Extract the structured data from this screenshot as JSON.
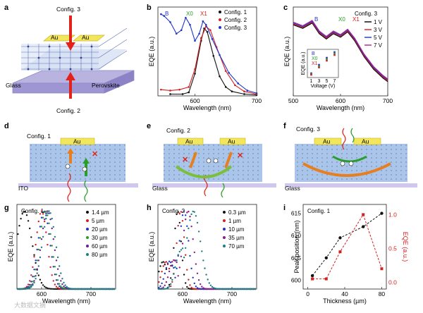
{
  "panel_labels": [
    "a",
    "b",
    "c",
    "d",
    "e",
    "f",
    "g",
    "h",
    "i"
  ],
  "panel_a": {
    "config3": "Config. 3",
    "config2": "Config. 2",
    "au_left": "Au",
    "au_right": "Au",
    "glass": "Glass",
    "perovskite": "Perovskite"
  },
  "panel_d": {
    "config": "Config. 1",
    "au": "Au",
    "substrate": "ITO"
  },
  "panel_e": {
    "config": "Config. 2",
    "au_left": "Au",
    "au_right": "Au",
    "substrate": "Glass"
  },
  "panel_f": {
    "config": "Config. 3",
    "au_left": "Au",
    "au_right": "Au",
    "substrate": "Glass"
  },
  "watermark": "大数据文摘",
  "chart_data": [
    {
      "panel": "b",
      "type": "scatter",
      "xlabel": "Wavelength (nm)",
      "ylabel": "EQE (a.u.)",
      "xlim": [
        540,
        700
      ],
      "xticks": [
        600,
        700
      ],
      "annotations": [
        "B",
        "X0",
        "X1"
      ],
      "series": [
        {
          "name": "Config. 1",
          "color": "#111111",
          "points": [
            [
              560,
              0.02
            ],
            [
              580,
              0.02
            ],
            [
              590,
              0.04
            ],
            [
              600,
              0.25
            ],
            [
              610,
              0.62
            ],
            [
              615,
              0.76
            ],
            [
              620,
              0.72
            ],
            [
              630,
              0.45
            ],
            [
              640,
              0.22
            ],
            [
              650,
              0.1
            ],
            [
              660,
              0.05
            ],
            [
              680,
              0.02
            ],
            [
              700,
              0.01
            ]
          ]
        },
        {
          "name": "Config. 2",
          "color": "#d62020",
          "points": [
            [
              545,
              0.07
            ],
            [
              560,
              0.06
            ],
            [
              575,
              0.07
            ],
            [
              590,
              0.1
            ],
            [
              600,
              0.3
            ],
            [
              610,
              0.65
            ],
            [
              618,
              0.78
            ],
            [
              625,
              0.74
            ],
            [
              635,
              0.55
            ],
            [
              650,
              0.28
            ],
            [
              665,
              0.12
            ],
            [
              680,
              0.05
            ],
            [
              700,
              0.02
            ]
          ]
        },
        {
          "name": "Config. 3",
          "color": "#1f35c8",
          "points": [
            [
              545,
              0.92
            ],
            [
              550,
              0.9
            ],
            [
              560,
              0.83
            ],
            [
              570,
              0.7
            ],
            [
              578,
              0.74
            ],
            [
              585,
              0.88
            ],
            [
              592,
              0.8
            ],
            [
              600,
              0.62
            ],
            [
              607,
              0.7
            ],
            [
              613,
              0.84
            ],
            [
              618,
              0.8
            ],
            [
              628,
              0.64
            ],
            [
              640,
              0.46
            ],
            [
              655,
              0.26
            ],
            [
              670,
              0.14
            ],
            [
              685,
              0.06
            ],
            [
              700,
              0.03
            ]
          ]
        }
      ]
    },
    {
      "panel": "c",
      "type": "line",
      "title": "Config. 3",
      "xlabel": "Wavelength (nm)",
      "ylabel": "EQE (a.u.)",
      "xlim": [
        500,
        700
      ],
      "xticks": [
        500,
        600,
        700
      ],
      "annotations": [
        "B",
        "X0",
        "X1"
      ],
      "series": [
        {
          "name": "1 V",
          "color": "#000000",
          "points": [
            [
              500,
              0.8
            ],
            [
              520,
              0.76
            ],
            [
              540,
              0.82
            ],
            [
              555,
              0.7
            ],
            [
              570,
              0.64
            ],
            [
              585,
              0.7
            ],
            [
              600,
              0.66
            ],
            [
              615,
              0.72
            ],
            [
              630,
              0.62
            ],
            [
              650,
              0.44
            ],
            [
              670,
              0.3
            ],
            [
              690,
              0.2
            ],
            [
              700,
              0.16
            ]
          ]
        },
        {
          "name": "3 V",
          "color": "#d62020",
          "points": [
            [
              500,
              0.81
            ],
            [
              520,
              0.77
            ],
            [
              540,
              0.83
            ],
            [
              555,
              0.71
            ],
            [
              570,
              0.65
            ],
            [
              585,
              0.71
            ],
            [
              600,
              0.67
            ],
            [
              615,
              0.73
            ],
            [
              630,
              0.63
            ],
            [
              650,
              0.45
            ],
            [
              670,
              0.31
            ],
            [
              690,
              0.21
            ],
            [
              700,
              0.17
            ]
          ]
        },
        {
          "name": "5 V",
          "color": "#1f35c8",
          "points": [
            [
              500,
              0.82
            ],
            [
              520,
              0.78
            ],
            [
              540,
              0.84
            ],
            [
              555,
              0.72
            ],
            [
              570,
              0.66
            ],
            [
              585,
              0.72
            ],
            [
              600,
              0.68
            ],
            [
              615,
              0.74
            ],
            [
              630,
              0.64
            ],
            [
              650,
              0.46
            ],
            [
              670,
              0.32
            ],
            [
              690,
              0.22
            ],
            [
              700,
              0.18
            ]
          ]
        },
        {
          "name": "7 V",
          "color": "#b0208c",
          "points": [
            [
              500,
              0.83
            ],
            [
              520,
              0.79
            ],
            [
              540,
              0.85
            ],
            [
              555,
              0.73
            ],
            [
              570,
              0.67
            ],
            [
              585,
              0.73
            ],
            [
              600,
              0.69
            ],
            [
              615,
              0.75
            ],
            [
              630,
              0.65
            ],
            [
              650,
              0.47
            ],
            [
              670,
              0.33
            ],
            [
              690,
              0.23
            ],
            [
              700,
              0.19
            ]
          ]
        }
      ],
      "inset": {
        "xlabel": "Voltage (V)",
        "ylabel": "EQE (a.u.)",
        "xticks": [
          1,
          3,
          5,
          7
        ],
        "series": [
          {
            "name": "B",
            "color": "#1f35c8",
            "points": [
              [
                1,
                0.15
              ],
              [
                3,
                0.45
              ],
              [
                5,
                0.7
              ],
              [
                7,
                0.9
              ]
            ]
          },
          {
            "name": "X0",
            "color": "#2a9d2a",
            "points": [
              [
                1,
                0.12
              ],
              [
                3,
                0.4
              ],
              [
                5,
                0.65
              ],
              [
                7,
                0.85
              ]
            ]
          },
          {
            "name": "X1",
            "color": "#d62020",
            "points": [
              [
                1,
                0.1
              ],
              [
                3,
                0.36
              ],
              [
                5,
                0.6
              ],
              [
                7,
                0.8
              ]
            ]
          }
        ]
      }
    },
    {
      "panel": "g",
      "type": "scatter",
      "title": "Config. 1",
      "xlabel": "Wavelength (nm)",
      "ylabel": "EQE (a.u.)",
      "xlim": [
        550,
        750
      ],
      "xticks": [
        600,
        700
      ],
      "series": [
        {
          "name": "1.4 µm",
          "color": "#111111",
          "peak": 565,
          "width": 22
        },
        {
          "name": "5 µm",
          "color": "#d62020",
          "peak": 600,
          "width": 16
        },
        {
          "name": "20 µm",
          "color": "#1f35c8",
          "peak": 605,
          "width": 17
        },
        {
          "name": "30 µm",
          "color": "#2a9d2a",
          "peak": 608,
          "width": 17
        },
        {
          "name": "60 µm",
          "color": "#6a1e9c",
          "peak": 612,
          "width": 18
        },
        {
          "name": "80 µm",
          "color": "#1a7f7f",
          "peak": 615,
          "width": 19
        }
      ]
    },
    {
      "panel": "h",
      "type": "scatter",
      "title": "Config. 2",
      "xlabel": "Wavelength (nm)",
      "ylabel": "EQE (a.u.)",
      "xlim": [
        550,
        750
      ],
      "xticks": [
        600,
        700
      ],
      "series": [
        {
          "name": "0.3 µm",
          "color": "#111111",
          "peak": 590,
          "width": 10
        },
        {
          "name": "1 µm",
          "color": "#d62020",
          "peak": 596,
          "width": 11
        },
        {
          "name": "10 µm",
          "color": "#1f35c8",
          "peak": 603,
          "width": 13
        },
        {
          "name": "35 µm",
          "color": "#8a1e8a",
          "peak": 611,
          "width": 15
        },
        {
          "name": "70 µm",
          "color": "#1a7f7f",
          "peak": 622,
          "width": 20
        }
      ]
    },
    {
      "panel": "i",
      "type": "line",
      "title": "Config. 1",
      "xlabel": "Thickness (µm)",
      "ylabel": "Peak position (nm)",
      "ylabel_right": "EQE (a.u.)",
      "xlim": [
        -5,
        85
      ],
      "ylim": [
        598,
        617
      ],
      "ylim_right": [
        -0.1,
        1.15
      ],
      "xticks": [
        0,
        40,
        80
      ],
      "yticks": [
        600,
        605,
        610,
        615
      ],
      "yticks_right": [
        0.0,
        0.5,
        1.0
      ],
      "series": [
        {
          "name": "Peak position",
          "color": "#111111",
          "axis": "left",
          "x": [
            5,
            20,
            35,
            60,
            80
          ],
          "y": [
            601,
            605,
            609.5,
            612,
            615
          ]
        },
        {
          "name": "EQE",
          "color": "#d62020",
          "axis": "right",
          "x": [
            5,
            20,
            35,
            60,
            80
          ],
          "y": [
            0.05,
            0.05,
            0.45,
            1.0,
            0.2
          ]
        }
      ]
    }
  ]
}
